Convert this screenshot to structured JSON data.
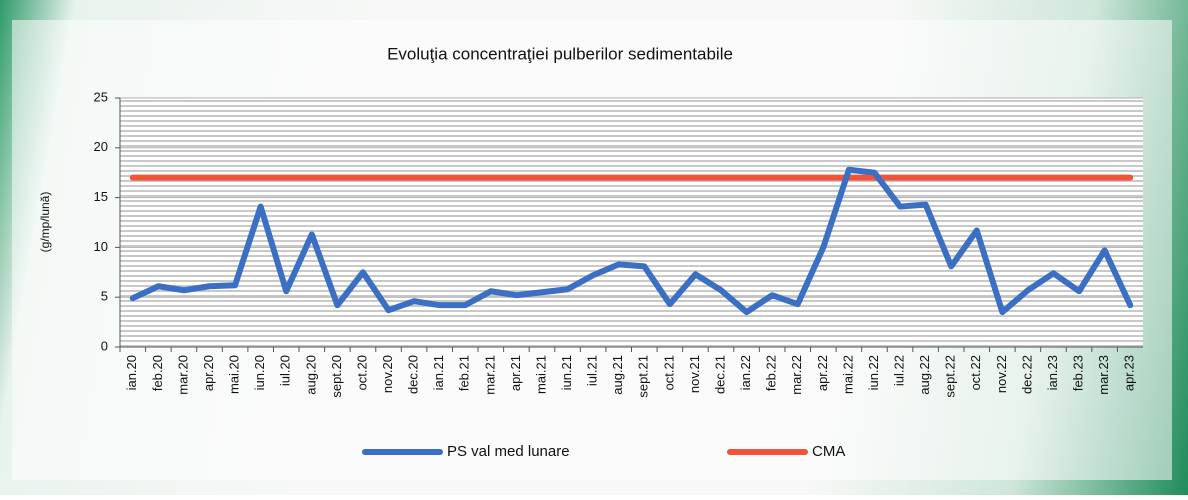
{
  "chart_data": {
    "type": "line",
    "title": "Evoluţia concentraţiei pulberilor sedimentabile",
    "y_label": "(g/mp/lună)",
    "categories": [
      "ian.20",
      "feb.20",
      "mar.20",
      "apr.20",
      "mai.20",
      "iun.20",
      "iul.20",
      "aug.20",
      "sept.20",
      "oct.20",
      "nov.20",
      "dec.20",
      "ian.21",
      "feb.21",
      "mar.21",
      "apr.21",
      "mai.21",
      "iun.21",
      "iul.21",
      "aug.21",
      "sept.21",
      "oct.21",
      "nov.21",
      "dec.21",
      "ian.22",
      "feb.22",
      "mar.22",
      "apr.22",
      "mai.22",
      "iun.22",
      "iul.22",
      "aug.22",
      "sept.22",
      "oct.22",
      "nov.22",
      "dec.22",
      "ian.23",
      "feb.23",
      "mar.23",
      "apr.23"
    ],
    "series": [
      {
        "name": "PS val med lunare",
        "color": "#3a6fc4",
        "values": [
          4.9,
          6.1,
          5.7,
          6.1,
          6.2,
          14.1,
          5.6,
          11.3,
          4.2,
          7.5,
          3.7,
          4.6,
          4.2,
          4.2,
          5.6,
          5.2,
          5.5,
          5.8,
          7.2,
          8.3,
          8.1,
          4.3,
          7.3,
          5.7,
          3.5,
          5.2,
          4.3,
          10.0,
          17.8,
          17.5,
          14.1,
          14.3,
          8.1,
          11.7,
          3.5,
          5.7,
          7.4,
          5.6,
          9.7,
          4.2
        ]
      },
      {
        "name": "CMA",
        "color": "#f0553a",
        "values": [
          17,
          17,
          17,
          17,
          17,
          17,
          17,
          17,
          17,
          17,
          17,
          17,
          17,
          17,
          17,
          17,
          17,
          17,
          17,
          17,
          17,
          17,
          17,
          17,
          17,
          17,
          17,
          17,
          17,
          17,
          17,
          17,
          17,
          17,
          17,
          17,
          17,
          17,
          17,
          17
        ]
      }
    ],
    "ylim": [
      0,
      25
    ],
    "yticks": [
      0,
      5,
      10,
      15,
      20,
      25
    ],
    "grid": true
  }
}
